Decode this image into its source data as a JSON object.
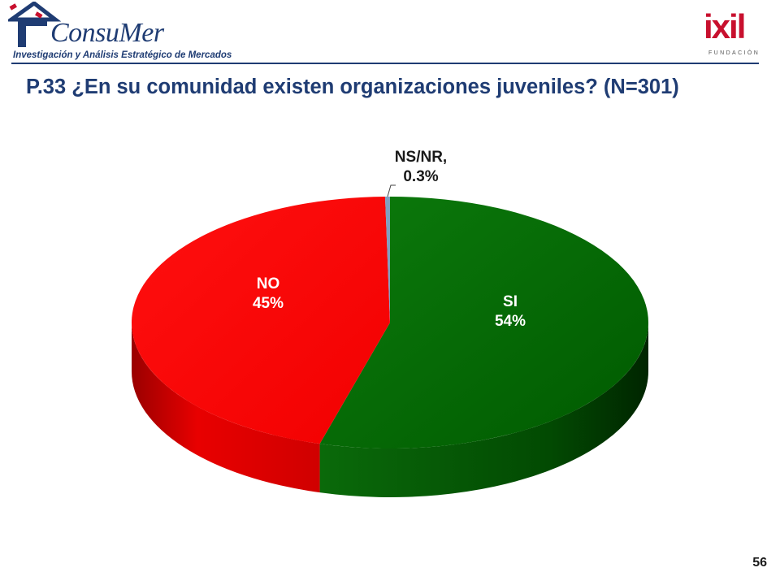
{
  "header": {
    "consumer_name": "ConsuMer",
    "consumer_tagline": "Investigación y Análisis Estratégico de Mercados",
    "ixil_word": "ixil",
    "ixil_sub": "FUNDACIÓN"
  },
  "title": "P.33 ¿En su comunidad existen organizaciones juveniles? (N=301)",
  "page_number": "56",
  "chart_data": {
    "type": "pie",
    "title": "P.33 ¿En su comunidad existen organizaciones juveniles? (N=301)",
    "style": "3d",
    "slices": [
      {
        "name": "SI",
        "value": 54,
        "value_label": "54%",
        "color": "#006400"
      },
      {
        "name": "NO",
        "value": 45,
        "value_label": "45%",
        "color": "#ff0000"
      },
      {
        "name": "NS/NR",
        "value": 0.3,
        "value_label": "0.3%",
        "color": "#7f9fbf"
      }
    ]
  },
  "labels": {
    "no_name": "NO",
    "no_value": "45%",
    "si_name": "SI",
    "si_value": "54%",
    "ns_name": "NS/NR,",
    "ns_value": "0.3%"
  }
}
